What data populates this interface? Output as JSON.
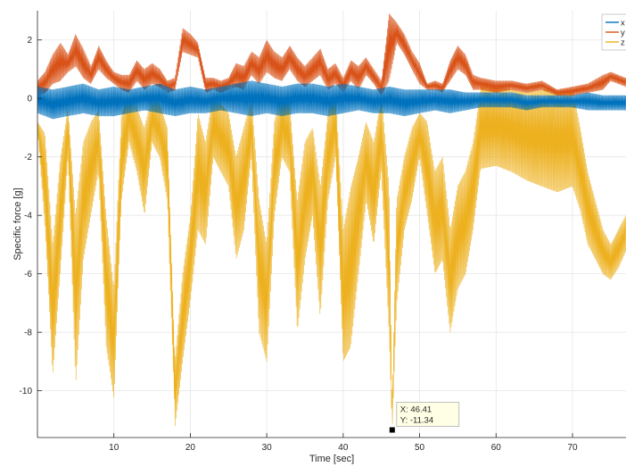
{
  "chart_data": {
    "type": "line",
    "title": "",
    "xlabel": "Time [sec]",
    "ylabel": "Specific force [g]",
    "xlim": [
      0,
      77
    ],
    "ylim": [
      -11.6,
      3
    ],
    "grid": true,
    "xticks": [
      10,
      20,
      30,
      40,
      50,
      60,
      70
    ],
    "yticks": [
      2,
      0,
      -2,
      -4,
      -6,
      -8,
      -10
    ],
    "legend_placement": "top-right",
    "series": [
      {
        "name": "x",
        "color": "#0072BD",
        "x": [
          0,
          2,
          4,
          6,
          8,
          10,
          12,
          14,
          16,
          18,
          20,
          22,
          24,
          26,
          28,
          30,
          32,
          34,
          36,
          38,
          40,
          42,
          44,
          46,
          48,
          50,
          52,
          54,
          56,
          58,
          60,
          62,
          64,
          66,
          68,
          70,
          72,
          74,
          77
        ],
        "lo": [
          -0.5,
          -0.7,
          -0.6,
          -0.5,
          -0.6,
          -0.6,
          -0.5,
          -0.4,
          -0.5,
          -0.6,
          -0.5,
          -0.5,
          -0.4,
          -0.5,
          -0.6,
          -0.5,
          -0.6,
          -0.5,
          -0.5,
          -0.6,
          -0.5,
          -0.4,
          -0.5,
          -0.5,
          -0.6,
          -0.5,
          -0.4,
          -0.5,
          -0.4,
          -0.3,
          -0.3,
          -0.3,
          -0.4,
          -0.3,
          -0.3,
          -0.3,
          -0.4,
          -0.4,
          -0.4
        ],
        "hi": [
          0.4,
          0.3,
          0.4,
          0.5,
          0.3,
          0.4,
          0.3,
          0.4,
          0.5,
          0.3,
          0.4,
          0.3,
          0.4,
          0.5,
          0.6,
          0.5,
          0.4,
          0.5,
          0.5,
          0.4,
          0.5,
          0.4,
          0.3,
          0.4,
          0.3,
          0.3,
          0.3,
          0.3,
          0.2,
          0.2,
          0.2,
          0.2,
          0.1,
          0.1,
          0.1,
          0.1,
          0.2,
          0.1,
          0.1
        ]
      },
      {
        "name": "y",
        "color": "#D95319",
        "x": [
          0,
          1,
          2,
          3,
          4,
          5,
          6,
          7,
          8,
          9,
          10,
          11,
          12,
          13,
          14,
          15,
          16,
          17,
          18,
          19,
          20,
          21,
          22,
          23,
          24,
          25,
          26,
          27,
          28,
          29,
          30,
          31,
          32,
          33,
          34,
          35,
          36,
          37,
          38,
          39,
          40,
          41,
          42,
          43,
          44,
          45,
          46,
          47,
          48,
          49,
          50,
          51,
          52,
          53,
          54,
          55,
          56,
          57,
          58,
          60,
          62,
          64,
          66,
          68,
          70,
          72,
          74,
          75,
          76,
          77
        ],
        "lo": [
          0.1,
          0.2,
          0.5,
          0.6,
          0.9,
          1.1,
          0.7,
          0.5,
          1.0,
          0.7,
          0.5,
          0.3,
          0.2,
          0.6,
          0.3,
          0.5,
          0.4,
          0.2,
          0.3,
          1.6,
          1.5,
          1.4,
          0.2,
          0.3,
          0.2,
          0.3,
          0.4,
          0.3,
          0.8,
          0.5,
          0.9,
          0.7,
          0.6,
          1.0,
          0.6,
          0.4,
          0.6,
          0.8,
          0.3,
          0.5,
          0.2,
          0.6,
          0.3,
          0.8,
          0.5,
          0.1,
          0.6,
          1.9,
          1.5,
          1.0,
          0.5,
          0.3,
          0.3,
          0.2,
          0.6,
          1.0,
          0.8,
          0.3,
          0.3,
          0.2,
          0.3,
          0.2,
          0.3,
          0.1,
          0.1,
          0.2,
          0.3,
          0.6,
          0.5,
          0.4
        ],
        "hi": [
          0.6,
          0.9,
          1.5,
          1.9,
          1.5,
          2.2,
          1.7,
          1.1,
          1.8,
          1.3,
          0.9,
          0.8,
          0.8,
          1.3,
          1.0,
          1.2,
          1.0,
          0.6,
          0.7,
          2.4,
          2.2,
          1.9,
          0.7,
          0.7,
          0.6,
          0.7,
          1.2,
          1.1,
          1.6,
          1.4,
          2.0,
          1.6,
          1.4,
          1.8,
          1.4,
          1.1,
          1.4,
          1.7,
          1.0,
          1.2,
          0.7,
          1.3,
          1.1,
          1.4,
          1.0,
          0.6,
          2.9,
          2.6,
          2.2,
          1.6,
          1.2,
          0.5,
          0.6,
          0.5,
          1.3,
          1.8,
          1.5,
          0.8,
          0.7,
          0.6,
          0.6,
          0.5,
          0.6,
          0.3,
          0.4,
          0.5,
          0.8,
          0.9,
          0.8,
          0.7
        ]
      },
      {
        "name": "z",
        "color": "#EDB120",
        "x": [
          0,
          1,
          2,
          3,
          4,
          5,
          6,
          7,
          8,
          9,
          10,
          11,
          12,
          13,
          14,
          15,
          16,
          17,
          18,
          19,
          20,
          21,
          22,
          23,
          24,
          25,
          26,
          27,
          28,
          29,
          30,
          31,
          32,
          33,
          34,
          35,
          36,
          37,
          38,
          39,
          40,
          41,
          42,
          43,
          44,
          45,
          46,
          46.41,
          47,
          48,
          49,
          50,
          51,
          52,
          53,
          54,
          55,
          56,
          57,
          58,
          60,
          62,
          64,
          66,
          68,
          70,
          71,
          72,
          73,
          74,
          75,
          76,
          77
        ],
        "lo": [
          -1.0,
          -4.5,
          -9.5,
          -6.0,
          -2.0,
          -9.8,
          -5.5,
          -4.0,
          -2.5,
          -8.5,
          -10.3,
          -3.5,
          -1.5,
          -2.5,
          -4.0,
          -1.5,
          -2.0,
          -3.5,
          -11.2,
          -9.0,
          -7.0,
          -4.5,
          -5.0,
          -2.0,
          -2.5,
          -3.0,
          -5.5,
          -4.5,
          -2.0,
          -8.0,
          -9.0,
          -4.0,
          -2.0,
          -2.5,
          -8.0,
          -5.5,
          -4.0,
          -7.5,
          -3.5,
          -2.0,
          -9.0,
          -8.5,
          -6.0,
          -3.5,
          -5.0,
          -2.5,
          -8.0,
          -11.34,
          -7.0,
          -4.5,
          -3.5,
          -2.0,
          -4.0,
          -6.0,
          -5.5,
          -8.0,
          -6.5,
          -6.0,
          -4.5,
          -2.4,
          -2.3,
          -2.5,
          -2.8,
          -3.0,
          -3.2,
          -3.0,
          -3.8,
          -5.0,
          -5.5,
          -6.0,
          -6.2,
          -5.8,
          -5.2
        ],
        "hi": [
          -0.8,
          -1.2,
          -5.0,
          -2.0,
          -0.3,
          -4.0,
          -1.5,
          -0.8,
          -0.4,
          -4.0,
          -6.5,
          -0.5,
          0.2,
          -0.3,
          -1.0,
          0.1,
          -0.2,
          -1.0,
          -9.0,
          -6.0,
          -4.0,
          -0.5,
          -1.5,
          0.2,
          -0.2,
          -0.5,
          -2.0,
          -1.0,
          0.0,
          -3.5,
          -5.0,
          -0.8,
          0.2,
          -0.2,
          -3.5,
          -1.5,
          -1.0,
          -3.0,
          -0.5,
          0.3,
          -4.5,
          -3.0,
          -2.0,
          -0.8,
          -1.5,
          0.1,
          -3.0,
          -10.5,
          -3.5,
          -2.0,
          -1.0,
          -0.5,
          -0.8,
          -2.5,
          -2.0,
          -4.5,
          -3.0,
          -2.5,
          -1.5,
          0.4,
          0.4,
          0.3,
          0.2,
          0.3,
          0.3,
          0.3,
          -1.0,
          -2.5,
          -3.5,
          -4.5,
          -5.0,
          -4.5,
          -4.0
        ]
      }
    ],
    "annotation": {
      "x": 46.41,
      "y": -11.34,
      "x_text": "X: 46.41",
      "y_text": "Y: -11.34"
    }
  }
}
